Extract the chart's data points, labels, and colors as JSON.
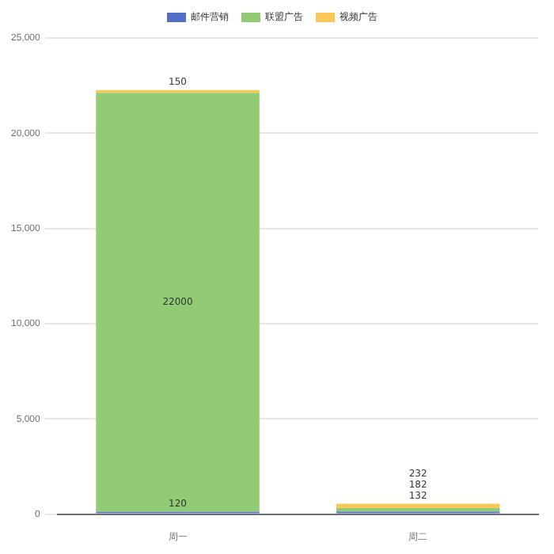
{
  "chart_data": {
    "type": "bar",
    "stacked": true,
    "categories": [
      "周一",
      "周二"
    ],
    "series": [
      {
        "name": "邮件营销",
        "color": "#5470c6",
        "values": [
          120,
          132
        ]
      },
      {
        "name": "联盟广告",
        "color": "#91cc75",
        "values": [
          22000,
          182
        ]
      },
      {
        "name": "视频广告",
        "color": "#fac858",
        "values": [
          150,
          232
        ]
      }
    ],
    "ylim": [
      0,
      25000
    ],
    "yticks": [
      {
        "value": 0,
        "label": "0"
      },
      {
        "value": 5000,
        "label": "5,000"
      },
      {
        "value": 10000,
        "label": "10,000"
      },
      {
        "value": 15000,
        "label": "15,000"
      },
      {
        "value": 20000,
        "label": "20,000"
      },
      {
        "value": 25000,
        "label": "25,000"
      }
    ],
    "grid": "y",
    "legend": "top",
    "data_labels": true
  }
}
